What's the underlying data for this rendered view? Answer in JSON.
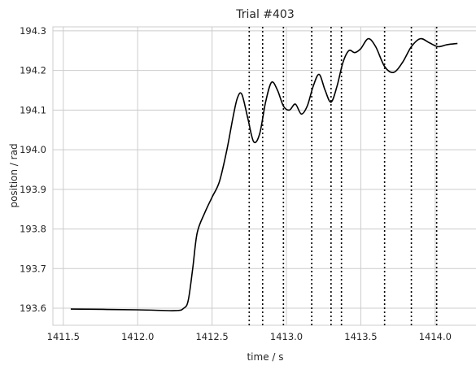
{
  "chart_data": {
    "type": "line",
    "title": "Trial #403",
    "xlabel": "time / s",
    "ylabel": "position / rad",
    "xlim": [
      1411.43,
      1414.28
    ],
    "ylim": [
      193.557,
      194.31
    ],
    "grid": true,
    "x_ticks": [
      1411.5,
      1412.0,
      1412.5,
      1413.0,
      1413.5,
      1414.0
    ],
    "x_tick_labels": [
      "1411.5",
      "1412.0",
      "1412.5",
      "1413.0",
      "1413.5",
      "1414.0"
    ],
    "y_ticks": [
      193.6,
      193.7,
      193.8,
      193.9,
      194.0,
      194.1,
      194.2,
      194.3
    ],
    "y_tick_labels": [
      "193.6",
      "193.7",
      "193.8",
      "193.9",
      "194.0",
      "194.1",
      "194.2",
      "194.3"
    ],
    "series": [
      {
        "color": "#000000",
        "x": [
          1411.55,
          1412.0,
          1412.25,
          1412.31,
          1412.34,
          1412.37,
          1412.4,
          1412.45,
          1412.5,
          1412.55,
          1412.6,
          1412.64,
          1412.67,
          1412.7,
          1412.74,
          1412.78,
          1412.82,
          1412.86,
          1412.9,
          1412.94,
          1412.98,
          1413.02,
          1413.06,
          1413.1,
          1413.14,
          1413.18,
          1413.22,
          1413.26,
          1413.3,
          1413.34,
          1413.38,
          1413.42,
          1413.46,
          1413.5,
          1413.55,
          1413.6,
          1413.66,
          1413.72,
          1413.78,
          1413.84,
          1413.9,
          1413.96,
          1414.02,
          1414.08,
          1414.15
        ],
        "y": [
          193.598,
          193.596,
          193.594,
          193.6,
          193.62,
          193.7,
          193.79,
          193.84,
          193.88,
          193.92,
          194.0,
          194.08,
          194.13,
          194.14,
          194.08,
          194.02,
          194.04,
          194.12,
          194.17,
          194.15,
          194.11,
          194.1,
          194.115,
          194.09,
          194.11,
          194.16,
          194.19,
          194.15,
          194.12,
          194.16,
          194.22,
          194.25,
          194.245,
          194.255,
          194.28,
          194.26,
          194.21,
          194.195,
          194.22,
          194.26,
          194.28,
          194.27,
          194.26,
          194.265,
          194.268
        ]
      }
    ],
    "vertical_markers": [
      1412.75,
      1412.84,
      1412.98,
      1413.17,
      1413.3,
      1413.37,
      1413.66,
      1413.84,
      1414.01
    ]
  }
}
